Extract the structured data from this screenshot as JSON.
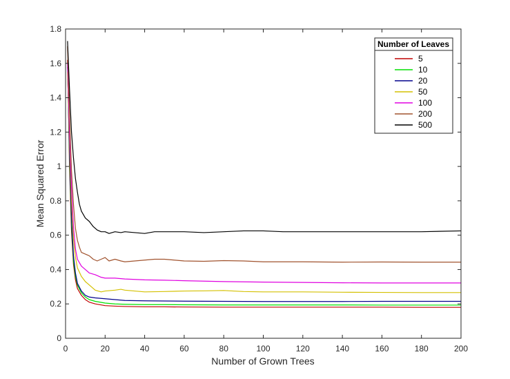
{
  "chart_data": {
    "type": "line",
    "xlabel": "Number of Grown Trees",
    "ylabel": "Mean Squared Error",
    "xlim": [
      0,
      200
    ],
    "ylim": [
      0,
      1.8
    ],
    "xticks": [
      "0",
      "20",
      "40",
      "60",
      "80",
      "100",
      "120",
      "140",
      "160",
      "180",
      "200"
    ],
    "yticks": [
      "0",
      "0.2",
      "0.4",
      "0.6",
      "0.8",
      "1",
      "1.2",
      "1.4",
      "1.6",
      "1.8"
    ],
    "grid": false,
    "legend": {
      "title": "Number of Leaves",
      "placement": "top-right"
    },
    "series": [
      {
        "name": "5",
        "color": "#c00000",
        "x": [
          1,
          2,
          3,
          4,
          5,
          6,
          8,
          10,
          12,
          15,
          20,
          25,
          30,
          40,
          50,
          60,
          80,
          100,
          120,
          140,
          160,
          180,
          200
        ],
        "y": [
          1.62,
          1.0,
          0.62,
          0.43,
          0.34,
          0.29,
          0.25,
          0.225,
          0.21,
          0.2,
          0.19,
          0.187,
          0.185,
          0.183,
          0.183,
          0.182,
          0.181,
          0.181,
          0.181,
          0.181,
          0.181,
          0.18,
          0.18
        ]
      },
      {
        "name": "10",
        "color": "#00e000",
        "x": [
          1,
          2,
          3,
          4,
          5,
          6,
          8,
          10,
          12,
          15,
          20,
          25,
          30,
          40,
          50,
          60,
          80,
          100,
          120,
          140,
          160,
          180,
          200
        ],
        "y": [
          1.6,
          1.05,
          0.66,
          0.45,
          0.36,
          0.31,
          0.265,
          0.24,
          0.225,
          0.215,
          0.205,
          0.2,
          0.198,
          0.196,
          0.196,
          0.195,
          0.194,
          0.194,
          0.194,
          0.194,
          0.193,
          0.193,
          0.193
        ]
      },
      {
        "name": "20",
        "color": "#00008b",
        "x": [
          1,
          2,
          3,
          4,
          5,
          6,
          8,
          10,
          12,
          15,
          20,
          25,
          30,
          40,
          50,
          60,
          80,
          100,
          120,
          140,
          160,
          180,
          200
        ],
        "y": [
          1.58,
          1.08,
          0.7,
          0.48,
          0.38,
          0.32,
          0.275,
          0.25,
          0.24,
          0.235,
          0.23,
          0.225,
          0.22,
          0.218,
          0.217,
          0.216,
          0.215,
          0.214,
          0.214,
          0.214,
          0.215,
          0.215,
          0.215
        ]
      },
      {
        "name": "50",
        "color": "#d4c000",
        "x": [
          1,
          2,
          3,
          4,
          5,
          6,
          8,
          10,
          12,
          15,
          18,
          20,
          25,
          28,
          30,
          35,
          40,
          50,
          60,
          70,
          80,
          90,
          100,
          120,
          140,
          160,
          180,
          200
        ],
        "y": [
          1.55,
          1.15,
          0.8,
          0.58,
          0.47,
          0.41,
          0.36,
          0.33,
          0.31,
          0.28,
          0.27,
          0.275,
          0.28,
          0.285,
          0.28,
          0.275,
          0.27,
          0.272,
          0.275,
          0.276,
          0.278,
          0.272,
          0.27,
          0.27,
          0.268,
          0.267,
          0.266,
          0.266
        ]
      },
      {
        "name": "100",
        "color": "#e000e0",
        "x": [
          1,
          2,
          3,
          4,
          5,
          6,
          8,
          10,
          12,
          15,
          18,
          20,
          25,
          30,
          40,
          50,
          60,
          80,
          100,
          120,
          140,
          160,
          180,
          200
        ],
        "y": [
          1.6,
          1.2,
          0.88,
          0.65,
          0.52,
          0.46,
          0.42,
          0.4,
          0.38,
          0.37,
          0.355,
          0.35,
          0.35,
          0.345,
          0.34,
          0.338,
          0.335,
          0.33,
          0.327,
          0.325,
          0.323,
          0.322,
          0.322,
          0.322
        ]
      },
      {
        "name": "200",
        "color": "#a0522d",
        "x": [
          1,
          2,
          3,
          4,
          5,
          6,
          7,
          8,
          10,
          12,
          14,
          16,
          18,
          20,
          22,
          25,
          28,
          30,
          35,
          40,
          45,
          50,
          55,
          60,
          70,
          80,
          90,
          100,
          110,
          120,
          140,
          160,
          180,
          200
        ],
        "y": [
          1.7,
          1.3,
          0.98,
          0.78,
          0.64,
          0.57,
          0.53,
          0.5,
          0.49,
          0.48,
          0.46,
          0.45,
          0.46,
          0.47,
          0.45,
          0.46,
          0.45,
          0.445,
          0.45,
          0.455,
          0.46,
          0.46,
          0.455,
          0.45,
          0.448,
          0.452,
          0.45,
          0.445,
          0.445,
          0.445,
          0.443,
          0.444,
          0.443,
          0.443
        ]
      },
      {
        "name": "500",
        "color": "#000000",
        "x": [
          1,
          2,
          3,
          4,
          5,
          6,
          7,
          8,
          10,
          12,
          14,
          16,
          18,
          20,
          22,
          25,
          28,
          30,
          35,
          40,
          45,
          50,
          60,
          70,
          80,
          90,
          100,
          110,
          120,
          140,
          160,
          180,
          200
        ],
        "y": [
          1.73,
          1.45,
          1.2,
          1.05,
          0.93,
          0.85,
          0.78,
          0.74,
          0.7,
          0.68,
          0.65,
          0.63,
          0.62,
          0.62,
          0.61,
          0.62,
          0.615,
          0.62,
          0.615,
          0.61,
          0.62,
          0.62,
          0.62,
          0.615,
          0.62,
          0.625,
          0.625,
          0.62,
          0.62,
          0.62,
          0.62,
          0.62,
          0.625
        ]
      }
    ]
  }
}
